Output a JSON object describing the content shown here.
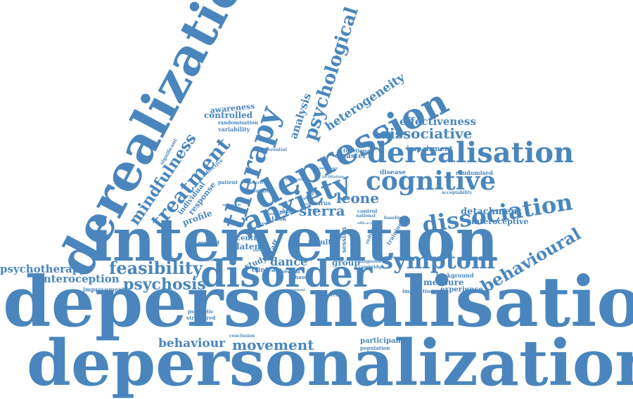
{
  "cloud": {
    "color": "#4a86bd",
    "background": "#ffffff",
    "words": [
      "depersonalisation",
      "depersonalization",
      "intervention",
      "derealization",
      "disorder",
      "depression",
      "anxiety",
      "therapy",
      "derealisation",
      "symptom",
      "cognitive",
      "dissociation",
      "psychological",
      "treatment",
      "mindfulness",
      "feasibility",
      "psychosis",
      "behavioural",
      "dissociative",
      "heterogeneity",
      "effectiveness",
      "psychotherapy",
      "interoception",
      "movement",
      "behaviour",
      "leone",
      "sierra",
      "dance",
      "analysis",
      "awareness",
      "controlled",
      "randomisation",
      "variability",
      "detachment",
      "interoceptive",
      "impairment",
      "randomised",
      "disease",
      "acceptability",
      "individual",
      "response",
      "profile",
      "effective",
      "significant",
      "patient",
      "severity",
      "former",
      "disaster",
      "functional",
      "differential",
      "latent",
      "centre",
      "staff",
      "study",
      "clinical",
      "task",
      "cross",
      "health",
      "phase",
      "result",
      "group",
      "session",
      "reduce",
      "training",
      "background",
      "measure",
      "experience",
      "implication",
      "improvement",
      "method",
      "outcome",
      "psychotic",
      "structured",
      "conclusion",
      "participant",
      "population",
      "research",
      "assessment",
      "cambridge",
      "diagnosis",
      "virus",
      "sample",
      "control",
      "national",
      "baseline",
      "week",
      "body",
      "efficacy",
      "facilitator",
      "inventory",
      "facilitation",
      "approach",
      "worker",
      "tool",
      "mental",
      "trial"
    ]
  }
}
